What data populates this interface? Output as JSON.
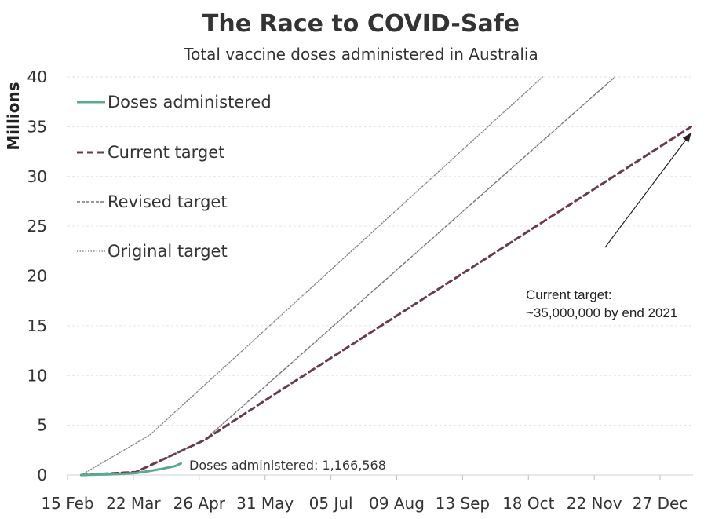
{
  "chart_data": {
    "type": "line",
    "title": "The Race to COVID-Safe",
    "subtitle": "Total vaccine doses administered in Australia",
    "ylabel": "Millions",
    "ylim": [
      0,
      40
    ],
    "yticks": [
      "0",
      "5",
      "10",
      "15",
      "20",
      "25",
      "30",
      "35",
      "40"
    ],
    "xticks": [
      "15 Feb",
      "22 Mar",
      "26 Apr",
      "31 May",
      "05 Jul",
      "09 Aug",
      "13 Sep",
      "18 Oct",
      "22 Nov",
      "27 Dec"
    ],
    "grid": true,
    "legend_position": "top-left",
    "series": [
      {
        "name": "Doses administered",
        "color": "#5aaa8e",
        "style": "solid",
        "points": [
          [
            "2021-02-22",
            0
          ],
          [
            "2021-03-01",
            0.03
          ],
          [
            "2021-03-08",
            0.06
          ],
          [
            "2021-03-15",
            0.12
          ],
          [
            "2021-03-22",
            0.2
          ],
          [
            "2021-03-29",
            0.4
          ],
          [
            "2021-04-05",
            0.65
          ],
          [
            "2021-04-11",
            0.9
          ],
          [
            "2021-04-14",
            1.17
          ]
        ]
      },
      {
        "name": "Current target",
        "color": "#6a3a4e",
        "style": "dashed",
        "points": [
          [
            "2021-02-22",
            0
          ],
          [
            "2021-03-22",
            0.3
          ],
          [
            "2021-04-26",
            3.5
          ],
          [
            "2021-05-31",
            8.0
          ],
          [
            "2021-12-31",
            35.0
          ]
        ]
      },
      {
        "name": "Revised target",
        "color": "#777777",
        "style": "dashed-fine",
        "points": [
          [
            "2021-02-22",
            0
          ],
          [
            "2021-03-22",
            0.3
          ],
          [
            "2021-04-26",
            3.5
          ],
          [
            "2021-11-22",
            40.0
          ]
        ]
      },
      {
        "name": "Original target",
        "color": "#888888",
        "style": "dotted",
        "points": [
          [
            "2021-02-22",
            0
          ],
          [
            "2021-03-29",
            4.0
          ],
          [
            "2021-10-16",
            40.0
          ]
        ]
      }
    ],
    "annotations": [
      {
        "text": "Doses administered: 1,166,568"
      },
      {
        "lines": [
          "Current target:",
          "~35,000,000 by end 2021"
        ]
      }
    ]
  }
}
